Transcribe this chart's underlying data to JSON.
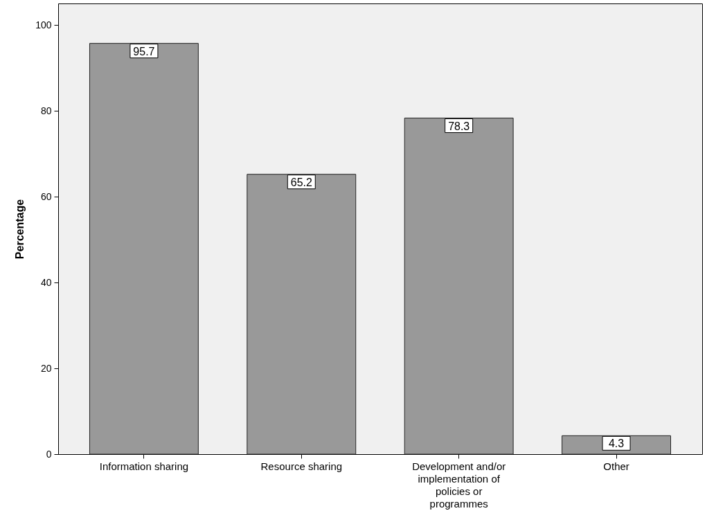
{
  "chart_data": {
    "type": "bar",
    "ylabel": "Percentage",
    "categories": [
      "Information sharing",
      "Resource sharing",
      "Development and/or implementation of policies or programmes",
      "Other"
    ],
    "values": [
      95.7,
      65.2,
      78.3,
      4.3
    ],
    "color": "#999999",
    "ylim": [
      0,
      105
    ],
    "yticks": [
      0,
      20,
      40,
      60,
      80,
      100
    ],
    "grid": false,
    "data_labels": true
  }
}
